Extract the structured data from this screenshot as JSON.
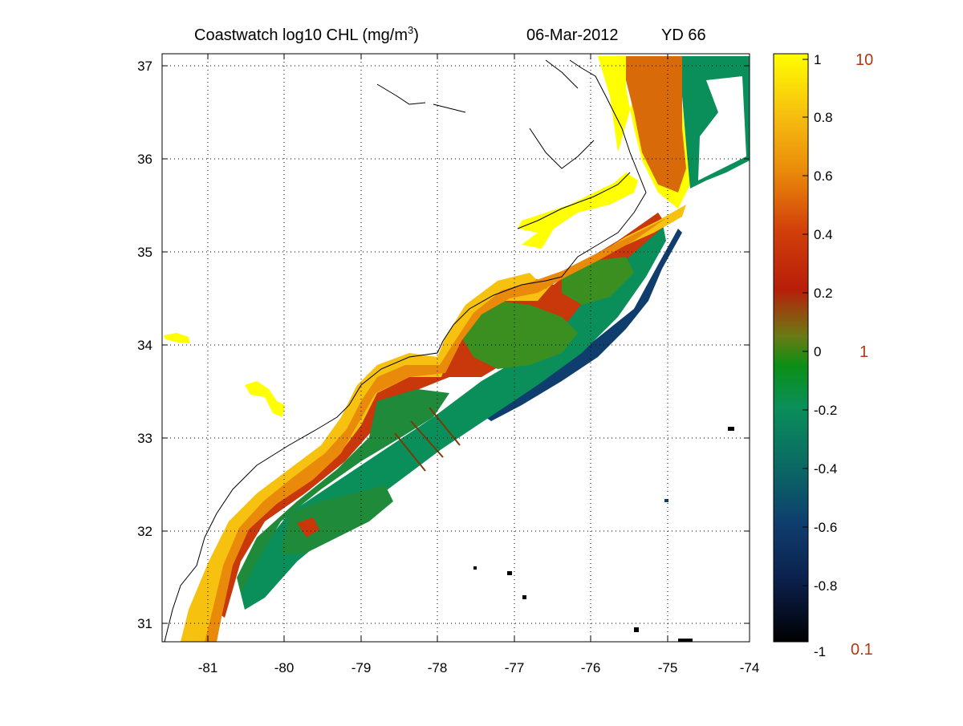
{
  "title": {
    "prefix": "Coastwatch  log10  CHL (mg/m",
    "superscript": "3",
    "suffix": ")",
    "date": "06-Mar-2012",
    "yearday": "YD 66"
  },
  "map": {
    "lon_range": [
      -81.6,
      -74
    ],
    "lat_range": [
      30.8,
      37.15
    ],
    "x_ticks": [
      "-81",
      "-80",
      "-79",
      "-78",
      "-77",
      "-76",
      "-75",
      "-74"
    ],
    "y_ticks": [
      "31",
      "32",
      "33",
      "34",
      "35",
      "36",
      "37"
    ],
    "grid": "dotted",
    "no_data_color": "#ffffff",
    "coastline_color": "#000000"
  },
  "colorbar": {
    "range": [
      -1,
      1
    ],
    "log_ticks": [
      "1",
      "0.8",
      "0.6",
      "0.4",
      "0.2",
      "0",
      "-0.2",
      "-0.4",
      "-0.6",
      "-0.8",
      "-1"
    ],
    "linear_labels": [
      "10",
      "1",
      "0.1"
    ],
    "linear_label_color": "#b03a10",
    "colors": [
      "#000000",
      "#0b1f4a",
      "#0f3d6e",
      "#0a6a63",
      "#0a8f5a",
      "#0b8f14",
      "#6b7a14",
      "#b81e0a",
      "#d2400a",
      "#ea8a0a",
      "#f7c10f",
      "#ffff00"
    ]
  }
}
